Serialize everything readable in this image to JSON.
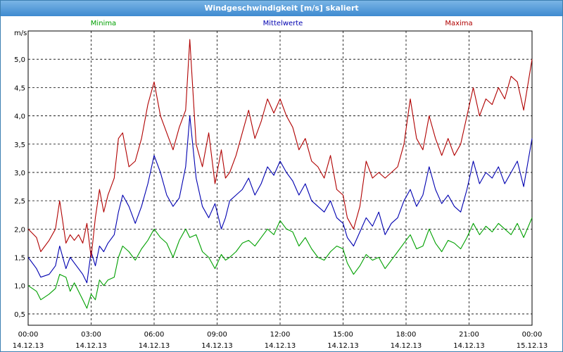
{
  "window": {
    "title": "Windgeschwindigkeit [m/s] skaliert"
  },
  "chart_data": {
    "type": "line",
    "title": "Windgeschwindigkeit [m/s] skaliert",
    "ylabel": "m/s",
    "ylim": [
      0.3,
      5.5
    ],
    "xlim": [
      0,
      24
    ],
    "yticks": [
      "5,0",
      "4,5",
      "4,0",
      "3,5",
      "3,0",
      "2,5",
      "2,0",
      "1,5",
      "1,0",
      "0,5"
    ],
    "ytick_values": [
      5.0,
      4.5,
      4.0,
      3.5,
      3.0,
      2.5,
      2.0,
      1.5,
      1.0,
      0.5
    ],
    "xticks": [
      {
        "time": "00:00",
        "date": "14.12.13"
      },
      {
        "time": "03:00",
        "date": "14.12.13"
      },
      {
        "time": "06:00",
        "date": "14.12.13"
      },
      {
        "time": "09:00",
        "date": "14.12.13"
      },
      {
        "time": "12:00",
        "date": "14.12.13"
      },
      {
        "time": "15:00",
        "date": "14.12.13"
      },
      {
        "time": "18:00",
        "date": "14.12.13"
      },
      {
        "time": "21:00",
        "date": "14.12.13"
      },
      {
        "time": "00:00",
        "date": "15.12.13"
      }
    ],
    "xtick_hours": [
      0,
      3,
      6,
      9,
      12,
      15,
      18,
      21,
      24
    ],
    "grid": true,
    "legend_position": "top",
    "series": [
      {
        "name": "Minima",
        "color": "#00a000",
        "points": [
          [
            0,
            1.0
          ],
          [
            0.4,
            0.9
          ],
          [
            0.6,
            0.75
          ],
          [
            1.0,
            0.85
          ],
          [
            1.3,
            0.95
          ],
          [
            1.5,
            1.2
          ],
          [
            1.8,
            1.15
          ],
          [
            2.0,
            0.9
          ],
          [
            2.2,
            1.05
          ],
          [
            2.4,
            0.9
          ],
          [
            2.6,
            0.75
          ],
          [
            2.8,
            0.6
          ],
          [
            3.0,
            0.85
          ],
          [
            3.2,
            0.75
          ],
          [
            3.4,
            1.1
          ],
          [
            3.6,
            1.0
          ],
          [
            3.8,
            1.1
          ],
          [
            4.1,
            1.15
          ],
          [
            4.3,
            1.5
          ],
          [
            4.5,
            1.7
          ],
          [
            4.8,
            1.6
          ],
          [
            5.1,
            1.45
          ],
          [
            5.4,
            1.65
          ],
          [
            5.7,
            1.8
          ],
          [
            6.0,
            2.0
          ],
          [
            6.3,
            1.85
          ],
          [
            6.6,
            1.75
          ],
          [
            6.9,
            1.5
          ],
          [
            7.2,
            1.8
          ],
          [
            7.5,
            2.0
          ],
          [
            7.7,
            1.85
          ],
          [
            8.0,
            1.9
          ],
          [
            8.3,
            1.6
          ],
          [
            8.6,
            1.5
          ],
          [
            8.9,
            1.3
          ],
          [
            9.2,
            1.55
          ],
          [
            9.4,
            1.45
          ],
          [
            9.6,
            1.5
          ],
          [
            9.9,
            1.6
          ],
          [
            10.2,
            1.75
          ],
          [
            10.5,
            1.8
          ],
          [
            10.8,
            1.7
          ],
          [
            11.1,
            1.85
          ],
          [
            11.4,
            2.0
          ],
          [
            11.7,
            1.9
          ],
          [
            12.0,
            2.15
          ],
          [
            12.3,
            2.0
          ],
          [
            12.6,
            1.95
          ],
          [
            12.9,
            1.7
          ],
          [
            13.2,
            1.85
          ],
          [
            13.5,
            1.65
          ],
          [
            13.8,
            1.5
          ],
          [
            14.1,
            1.45
          ],
          [
            14.4,
            1.6
          ],
          [
            14.7,
            1.7
          ],
          [
            15.0,
            1.65
          ],
          [
            15.2,
            1.4
          ],
          [
            15.5,
            1.2
          ],
          [
            15.8,
            1.35
          ],
          [
            16.1,
            1.55
          ],
          [
            16.4,
            1.45
          ],
          [
            16.7,
            1.5
          ],
          [
            17.0,
            1.3
          ],
          [
            17.3,
            1.45
          ],
          [
            17.6,
            1.6
          ],
          [
            17.9,
            1.75
          ],
          [
            18.2,
            1.9
          ],
          [
            18.5,
            1.65
          ],
          [
            18.8,
            1.7
          ],
          [
            19.1,
            2.0
          ],
          [
            19.4,
            1.75
          ],
          [
            19.7,
            1.6
          ],
          [
            20.0,
            1.8
          ],
          [
            20.3,
            1.75
          ],
          [
            20.6,
            1.65
          ],
          [
            20.9,
            1.85
          ],
          [
            21.2,
            2.1
          ],
          [
            21.5,
            1.9
          ],
          [
            21.8,
            2.05
          ],
          [
            22.1,
            1.95
          ],
          [
            22.4,
            2.1
          ],
          [
            22.7,
            2.0
          ],
          [
            23.0,
            1.9
          ],
          [
            23.3,
            2.1
          ],
          [
            23.6,
            1.85
          ],
          [
            24.0,
            2.2
          ]
        ]
      },
      {
        "name": "Mittelwerte",
        "color": "#0000b0",
        "points": [
          [
            0,
            1.5
          ],
          [
            0.4,
            1.3
          ],
          [
            0.6,
            1.15
          ],
          [
            1.0,
            1.2
          ],
          [
            1.3,
            1.35
          ],
          [
            1.5,
            1.7
          ],
          [
            1.8,
            1.3
          ],
          [
            2.0,
            1.5
          ],
          [
            2.2,
            1.4
          ],
          [
            2.4,
            1.3
          ],
          [
            2.6,
            1.2
          ],
          [
            2.8,
            1.05
          ],
          [
            3.0,
            1.6
          ],
          [
            3.2,
            1.35
          ],
          [
            3.4,
            1.7
          ],
          [
            3.6,
            1.6
          ],
          [
            3.8,
            1.75
          ],
          [
            4.1,
            1.9
          ],
          [
            4.3,
            2.3
          ],
          [
            4.5,
            2.6
          ],
          [
            4.8,
            2.4
          ],
          [
            5.1,
            2.1
          ],
          [
            5.4,
            2.4
          ],
          [
            5.7,
            2.8
          ],
          [
            6.0,
            3.3
          ],
          [
            6.3,
            3.0
          ],
          [
            6.6,
            2.6
          ],
          [
            6.9,
            2.4
          ],
          [
            7.2,
            2.55
          ],
          [
            7.5,
            3.1
          ],
          [
            7.7,
            4.0
          ],
          [
            8.0,
            2.9
          ],
          [
            8.3,
            2.4
          ],
          [
            8.6,
            2.2
          ],
          [
            8.9,
            2.45
          ],
          [
            9.2,
            2.0
          ],
          [
            9.4,
            2.2
          ],
          [
            9.6,
            2.5
          ],
          [
            9.9,
            2.6
          ],
          [
            10.2,
            2.7
          ],
          [
            10.5,
            2.9
          ],
          [
            10.8,
            2.6
          ],
          [
            11.1,
            2.8
          ],
          [
            11.4,
            3.1
          ],
          [
            11.7,
            2.95
          ],
          [
            12.0,
            3.2
          ],
          [
            12.3,
            3.0
          ],
          [
            12.6,
            2.85
          ],
          [
            12.9,
            2.6
          ],
          [
            13.2,
            2.8
          ],
          [
            13.5,
            2.5
          ],
          [
            13.8,
            2.4
          ],
          [
            14.1,
            2.3
          ],
          [
            14.4,
            2.5
          ],
          [
            14.7,
            2.2
          ],
          [
            15.0,
            2.1
          ],
          [
            15.2,
            1.85
          ],
          [
            15.5,
            1.7
          ],
          [
            15.8,
            1.95
          ],
          [
            16.1,
            2.2
          ],
          [
            16.4,
            2.05
          ],
          [
            16.7,
            2.3
          ],
          [
            17.0,
            1.9
          ],
          [
            17.3,
            2.1
          ],
          [
            17.6,
            2.2
          ],
          [
            17.9,
            2.5
          ],
          [
            18.2,
            2.7
          ],
          [
            18.5,
            2.4
          ],
          [
            18.8,
            2.6
          ],
          [
            19.1,
            3.1
          ],
          [
            19.4,
            2.7
          ],
          [
            19.7,
            2.45
          ],
          [
            20.0,
            2.6
          ],
          [
            20.3,
            2.4
          ],
          [
            20.6,
            2.3
          ],
          [
            20.9,
            2.7
          ],
          [
            21.2,
            3.2
          ],
          [
            21.5,
            2.8
          ],
          [
            21.8,
            3.0
          ],
          [
            22.1,
            2.9
          ],
          [
            22.4,
            3.1
          ],
          [
            22.7,
            2.8
          ],
          [
            23.0,
            3.0
          ],
          [
            23.3,
            3.2
          ],
          [
            23.6,
            2.75
          ],
          [
            24.0,
            3.6
          ]
        ]
      },
      {
        "name": "Maxima",
        "color": "#b00000",
        "points": [
          [
            0,
            2.0
          ],
          [
            0.4,
            1.85
          ],
          [
            0.6,
            1.6
          ],
          [
            1.0,
            1.8
          ],
          [
            1.3,
            2.0
          ],
          [
            1.5,
            2.5
          ],
          [
            1.8,
            1.75
          ],
          [
            2.0,
            1.9
          ],
          [
            2.2,
            1.8
          ],
          [
            2.4,
            1.9
          ],
          [
            2.6,
            1.75
          ],
          [
            2.8,
            2.1
          ],
          [
            3.0,
            1.5
          ],
          [
            3.2,
            2.2
          ],
          [
            3.4,
            2.7
          ],
          [
            3.6,
            2.3
          ],
          [
            3.8,
            2.6
          ],
          [
            4.1,
            2.9
          ],
          [
            4.3,
            3.6
          ],
          [
            4.5,
            3.7
          ],
          [
            4.8,
            3.1
          ],
          [
            5.1,
            3.2
          ],
          [
            5.4,
            3.6
          ],
          [
            5.7,
            4.2
          ],
          [
            6.0,
            4.6
          ],
          [
            6.3,
            4.0
          ],
          [
            6.6,
            3.7
          ],
          [
            6.9,
            3.4
          ],
          [
            7.2,
            3.8
          ],
          [
            7.5,
            4.1
          ],
          [
            7.7,
            5.35
          ],
          [
            8.0,
            3.5
          ],
          [
            8.3,
            3.1
          ],
          [
            8.6,
            3.7
          ],
          [
            8.9,
            2.8
          ],
          [
            9.2,
            3.4
          ],
          [
            9.4,
            2.9
          ],
          [
            9.6,
            3.0
          ],
          [
            9.9,
            3.3
          ],
          [
            10.2,
            3.7
          ],
          [
            10.5,
            4.1
          ],
          [
            10.8,
            3.6
          ],
          [
            11.1,
            3.9
          ],
          [
            11.4,
            4.3
          ],
          [
            11.7,
            4.05
          ],
          [
            12.0,
            4.3
          ],
          [
            12.3,
            4.0
          ],
          [
            12.6,
            3.8
          ],
          [
            12.9,
            3.4
          ],
          [
            13.2,
            3.6
          ],
          [
            13.5,
            3.2
          ],
          [
            13.8,
            3.1
          ],
          [
            14.1,
            2.9
          ],
          [
            14.4,
            3.3
          ],
          [
            14.7,
            2.7
          ],
          [
            15.0,
            2.6
          ],
          [
            15.2,
            2.2
          ],
          [
            15.5,
            2.0
          ],
          [
            15.8,
            2.4
          ],
          [
            16.1,
            3.2
          ],
          [
            16.4,
            2.9
          ],
          [
            16.7,
            3.0
          ],
          [
            17.0,
            2.9
          ],
          [
            17.3,
            3.0
          ],
          [
            17.6,
            3.1
          ],
          [
            17.9,
            3.5
          ],
          [
            18.2,
            4.3
          ],
          [
            18.5,
            3.6
          ],
          [
            18.8,
            3.4
          ],
          [
            19.1,
            4.0
          ],
          [
            19.4,
            3.6
          ],
          [
            19.7,
            3.3
          ],
          [
            20.0,
            3.6
          ],
          [
            20.3,
            3.3
          ],
          [
            20.6,
            3.5
          ],
          [
            20.9,
            4.0
          ],
          [
            21.2,
            4.5
          ],
          [
            21.5,
            4.0
          ],
          [
            21.8,
            4.3
          ],
          [
            22.1,
            4.2
          ],
          [
            22.4,
            4.5
          ],
          [
            22.7,
            4.3
          ],
          [
            23.0,
            4.7
          ],
          [
            23.3,
            4.6
          ],
          [
            23.6,
            4.1
          ],
          [
            24.0,
            5.0
          ]
        ]
      }
    ]
  }
}
